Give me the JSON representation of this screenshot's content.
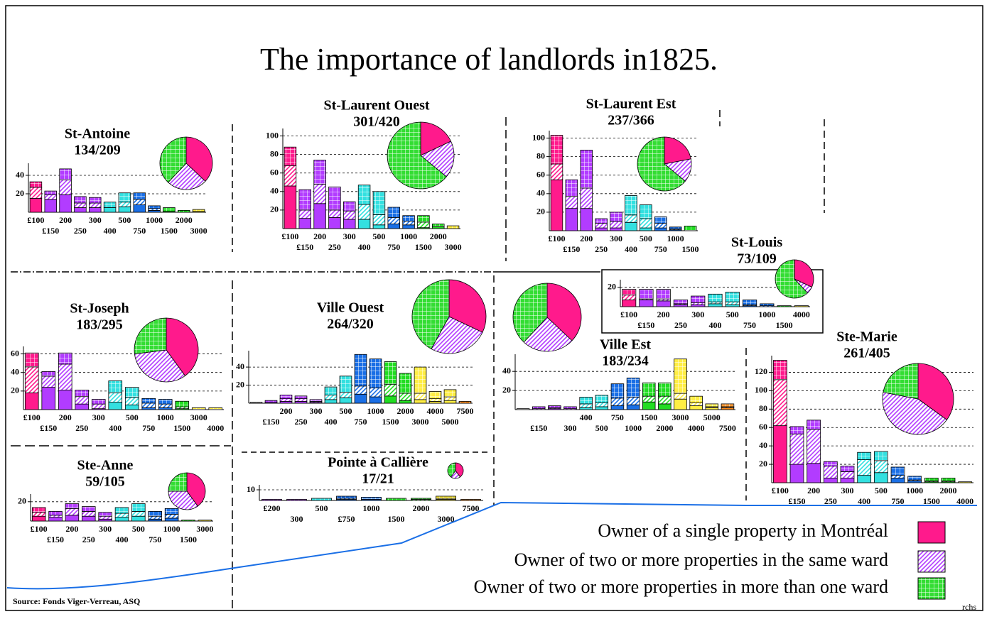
{
  "title": "The importance of landlords in1825.",
  "source": "Source: Fonds Viger-Verreau, ASQ",
  "credit": "rchs",
  "legend": [
    {
      "label": "Owner of a single property in Montréal",
      "color": "#ff1a8c"
    },
    {
      "label": "Owner of two or more properties in the same ward",
      "color": "#b23cff"
    },
    {
      "label": "Owner of two or more properties in more than one ward",
      "color": "#33dd33"
    }
  ],
  "class_colors": {
    "£100": "#ff1a8c",
    "£150": "#b23cff",
    "200": "#b23cff",
    "£200": "#b23cff",
    "250": "#b23cff",
    "300": "#b23cff",
    "400": "#33e0e0",
    "500": "#33e0e0",
    "750": "#1a6fe6",
    "£750": "#1a6fe6",
    "1000": "#1a6fe6",
    "1500": "#22dd22",
    "2000": "#22dd22",
    "3000": "#ffee44",
    "4000": "#ffee44",
    "5000": "#ffee44",
    "7500": "#ff8c1a"
  },
  "chart_data": [
    {
      "type": "bar",
      "stacked": true,
      "title": "St-Antoine",
      "subtitle": "134/209",
      "categories": [
        "£100",
        "£150",
        "200",
        "250",
        "300",
        "400",
        "500",
        "750",
        "1000",
        "1500",
        "2000",
        "3000"
      ],
      "series": [
        {
          "values": [
            15,
            14,
            19,
            5,
            5,
            5,
            6,
            8,
            2,
            1,
            0,
            1
          ]
        },
        {
          "values": [
            12,
            5,
            16,
            5,
            5,
            0,
            5,
            6,
            2,
            0,
            0,
            0
          ]
        },
        {
          "values": [
            6,
            4,
            12,
            7,
            6,
            6,
            10,
            7,
            3,
            4,
            2,
            2
          ]
        }
      ],
      "ylim": [
        0,
        50
      ],
      "yticks": [
        20,
        40
      ],
      "grid": true,
      "pie": {
        "values": [
          37,
          25,
          38
        ]
      }
    },
    {
      "type": "bar",
      "stacked": true,
      "title": "St-Laurent Ouest",
      "subtitle": "301/420",
      "categories": [
        "£100",
        "£150",
        "200",
        "250",
        "300",
        "400",
        "500",
        "750",
        "1000",
        "1500",
        "2000",
        "3000"
      ],
      "series": [
        {
          "values": [
            46,
            11,
            27,
            12,
            10,
            10,
            4,
            5,
            4,
            1,
            2,
            0
          ]
        },
        {
          "values": [
            22,
            9,
            21,
            8,
            9,
            16,
            11,
            7,
            4,
            6,
            0,
            0
          ]
        },
        {
          "values": [
            20,
            22,
            26,
            25,
            10,
            21,
            25,
            11,
            6,
            7,
            3,
            3
          ]
        }
      ],
      "ylim": [
        0,
        105
      ],
      "yticks": [
        20,
        40,
        60,
        80,
        100
      ],
      "grid": true,
      "pie": {
        "values": [
          18,
          18,
          64
        ]
      }
    },
    {
      "type": "bar",
      "stacked": true,
      "title": "St-Laurent Est",
      "subtitle": "237/366",
      "categories": [
        "£100",
        "£150",
        "200",
        "250",
        "300",
        "400",
        "500",
        "750",
        "1000",
        "1500"
      ],
      "series": [
        {
          "values": [
            55,
            24,
            24,
            3,
            3,
            9,
            3,
            3,
            1,
            0
          ]
        },
        {
          "values": [
            17,
            13,
            22,
            5,
            7,
            8,
            10,
            5,
            1,
            0
          ]
        },
        {
          "values": [
            31,
            18,
            41,
            5,
            10,
            21,
            15,
            7,
            2,
            5
          ]
        }
      ],
      "ylim": [
        0,
        105
      ],
      "yticks": [
        20,
        40,
        60,
        80,
        100
      ],
      "grid": true,
      "pie": {
        "values": [
          22,
          14,
          64
        ]
      }
    },
    {
      "type": "bar",
      "stacked": true,
      "title": "St-Louis",
      "subtitle": "73/109",
      "categories": [
        "£100",
        "£150",
        "200",
        "250",
        "300",
        "400",
        "500",
        "750",
        "1000",
        "1500",
        "4000"
      ],
      "series": [
        {
          "values": [
            7,
            7,
            6,
            2,
            2,
            3,
            2,
            1,
            0,
            0,
            0
          ]
        },
        {
          "values": [
            5,
            1,
            2,
            1,
            2,
            2,
            3,
            1,
            1,
            0,
            0
          ]
        },
        {
          "values": [
            6,
            10,
            10,
            4,
            7,
            8,
            10,
            5,
            2,
            1,
            1
          ]
        }
      ],
      "ylim": [
        0,
        25
      ],
      "yticks": [
        20
      ],
      "grid": true,
      "pie": {
        "values": [
          32,
          6,
          62
        ]
      }
    },
    {
      "type": "bar",
      "stacked": true,
      "title": "St-Joseph",
      "subtitle": "183/295",
      "categories": [
        "£100",
        "£150",
        "200",
        "250",
        "300",
        "400",
        "500",
        "750",
        "1000",
        "1500",
        "3000",
        "4000"
      ],
      "series": [
        {
          "values": [
            18,
            24,
            21,
            6,
            1,
            8,
            5,
            2,
            2,
            1,
            0,
            0
          ]
        },
        {
          "values": [
            28,
            12,
            28,
            8,
            5,
            10,
            8,
            5,
            4,
            2,
            0,
            0
          ]
        },
        {
          "values": [
            15,
            5,
            12,
            7,
            5,
            13,
            11,
            5,
            5,
            6,
            2,
            2
          ]
        }
      ],
      "ylim": [
        0,
        65
      ],
      "yticks": [
        20,
        40,
        60
      ],
      "grid": true,
      "pie": {
        "values": [
          40,
          33,
          27
        ]
      }
    },
    {
      "type": "bar",
      "stacked": true,
      "title": "Ville Ouest",
      "subtitle": "264/320",
      "categories": [
        null,
        "£150",
        "200",
        "250",
        "300",
        "400",
        "500",
        "750",
        "1000",
        "1500",
        "2000",
        "3000",
        "4000",
        "5000",
        "7500"
      ],
      "series": [
        {
          "values": [
            0,
            1,
            2,
            2,
            1,
            4,
            6,
            10,
            7,
            8,
            3,
            4,
            2,
            3,
            0
          ]
        },
        {
          "values": [
            0,
            0,
            3,
            3,
            1,
            5,
            6,
            9,
            10,
            13,
            8,
            7,
            3,
            4,
            0
          ]
        },
        {
          "values": [
            1,
            2,
            4,
            3,
            2,
            9,
            18,
            35,
            32,
            25,
            22,
            29,
            8,
            8,
            2
          ]
        }
      ],
      "ylim": [
        0,
        55
      ],
      "yticks": [
        20,
        40
      ],
      "grid": true,
      "pie": {
        "values": [
          32,
          26,
          42
        ]
      }
    },
    {
      "type": "bar",
      "stacked": true,
      "title": "Ville Est",
      "subtitle": "183/234",
      "categories": [
        null,
        "£150",
        null,
        "300",
        "400",
        "500",
        "750",
        "1000",
        "1500",
        "2000",
        "3000",
        "4000",
        "5000",
        "7500"
      ],
      "series": [
        {
          "values": [
            0,
            0,
            1,
            0,
            2,
            3,
            4,
            5,
            8,
            6,
            11,
            4,
            2,
            2
          ]
        },
        {
          "values": [
            0,
            1,
            1,
            1,
            4,
            4,
            8,
            8,
            6,
            8,
            6,
            3,
            1,
            1
          ]
        },
        {
          "values": [
            1,
            2,
            2,
            2,
            7,
            8,
            15,
            20,
            14,
            14,
            36,
            7,
            3,
            3
          ]
        }
      ],
      "ylim": [
        0,
        55
      ],
      "yticks": [
        20,
        40
      ],
      "grid": true,
      "pie": {
        "values": [
          37,
          25,
          38
        ]
      }
    },
    {
      "type": "bar",
      "stacked": true,
      "title": "Ste-Marie",
      "subtitle": "261/405",
      "categories": [
        "£100",
        "£150",
        "200",
        "250",
        "300",
        "400",
        "500",
        "750",
        "1000",
        "1500",
        "2000",
        "4000"
      ],
      "series": [
        {
          "values": [
            62,
            20,
            21,
            5,
            5,
            8,
            11,
            5,
            2,
            1,
            1,
            0
          ]
        },
        {
          "values": [
            50,
            33,
            37,
            13,
            7,
            17,
            13,
            3,
            1,
            1,
            1,
            0
          ]
        },
        {
          "values": [
            21,
            8,
            10,
            5,
            6,
            8,
            10,
            9,
            4,
            3,
            3,
            1
          ]
        }
      ],
      "ylim": [
        0,
        135
      ],
      "yticks": [
        20,
        40,
        60,
        80,
        100,
        120
      ],
      "grid": true,
      "pie": {
        "values": [
          35,
          43,
          22
        ]
      }
    },
    {
      "type": "bar",
      "stacked": true,
      "title": "Ste-Anne",
      "subtitle": "59/105",
      "categories": [
        "£100",
        "£150",
        "200",
        "250",
        "300",
        "400",
        "500",
        "750",
        "1000",
        "1500",
        "3000"
      ],
      "series": [
        {
          "values": [
            5,
            4,
            6,
            5,
            2,
            4,
            5,
            2,
            3,
            0,
            0
          ]
        },
        {
          "values": [
            4,
            2,
            7,
            5,
            3,
            4,
            5,
            3,
            4,
            0,
            0
          ]
        },
        {
          "values": [
            5,
            4,
            5,
            5,
            4,
            6,
            8,
            5,
            6,
            1,
            1
          ]
        }
      ],
      "ylim": [
        0,
        25
      ],
      "yticks": [
        20
      ],
      "grid": true,
      "pie": {
        "values": [
          40,
          35,
          25
        ]
      }
    },
    {
      "type": "bar",
      "stacked": true,
      "title": "Pointe à Callière",
      "subtitle": "17/21",
      "categories": [
        "£200",
        "300",
        "500",
        "£750",
        "1000",
        "1500",
        "2000",
        "3000",
        "7500"
      ],
      "series": [
        {
          "values": [
            0,
            0,
            0,
            1,
            1,
            0,
            0,
            1,
            0
          ]
        },
        {
          "values": [
            0,
            0,
            0,
            1,
            0,
            0,
            1,
            1,
            0
          ]
        },
        {
          "values": [
            1,
            1,
            2,
            2,
            2,
            2,
            1,
            2,
            1
          ]
        }
      ],
      "ylim": [
        0,
        12
      ],
      "yticks": [
        10
      ],
      "grid": true,
      "pie": {
        "values": [
          40,
          20,
          40
        ]
      }
    }
  ]
}
